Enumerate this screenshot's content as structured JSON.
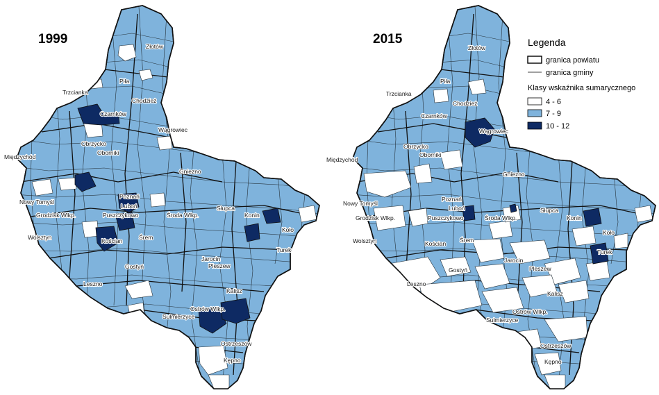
{
  "maps": [
    {
      "year": "1999",
      "towns": [
        "Złotów",
        "Piła",
        "Trzcianka",
        "Chodzież",
        "Czarnków",
        "Wągrowiec",
        "Obrzycko",
        "Oborniki",
        "Międzychód",
        "Gniezno",
        "Nowy Tomyśl",
        "Poznań",
        "Luboń",
        "Grodzisk Wlkp.",
        "Puszczykowo",
        "Środa Wlkp.",
        "Słupca",
        "Konin",
        "Koło",
        "Wolsztyn",
        "Kościan",
        "Śrem",
        "Turek",
        "Jarocin",
        "Gostyń",
        "Pleszew",
        "Leszno",
        "Kalisz",
        "Ostrów Wlkp.",
        "Sulmierzyce",
        "Ostrzeszów",
        "Kępno"
      ]
    },
    {
      "year": "2015",
      "towns": [
        "Złotów",
        "Piła",
        "Trzcianka",
        "Chodzież",
        "Czarnków",
        "Wągrowiec",
        "Obrzycko",
        "Oborniki",
        "Międzychód",
        "Gniezno",
        "Nowy Tomyśl",
        "Poznań",
        "Luboń",
        "Grodzisk Wlkp.",
        "Puszczykowo",
        "Środa Wlkp.",
        "Słupca",
        "Konin",
        "Koło",
        "Wolsztyn",
        "Kościan",
        "Śrem",
        "Turek",
        "Jarocin",
        "Gostyń",
        "Pleszew",
        "Leszno",
        "Kalisz",
        "Ostrów Wlkp.",
        "Sulmierzyce",
        "Ostrzeszów",
        "Kępno"
      ]
    }
  ],
  "legend": {
    "title": "Legenda",
    "line_items": [
      "granica powiatu",
      "granica gminy"
    ],
    "classes_title": "Klasy wskaźnika sumarycznego",
    "classes": [
      {
        "label": "4 - 6",
        "color": "#ffffff"
      },
      {
        "label": "7 - 9",
        "color": "#7fb3dc"
      },
      {
        "label": "10 - 12",
        "color": "#0e2a63"
      }
    ]
  },
  "colors": {
    "region_fill": "#7fb3dc",
    "low_fill": "#ffffff",
    "high_fill": "#0e2a63",
    "border": "#1f2a33"
  }
}
